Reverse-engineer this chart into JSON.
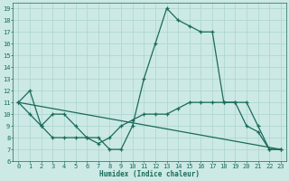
{
  "xlabel": "Humidex (Indice chaleur)",
  "bg_color": "#cce9e5",
  "line_color": "#1a6b5a",
  "grid_color": "#aad4ce",
  "xlim": [
    -0.5,
    23.5
  ],
  "ylim": [
    6,
    19.5
  ],
  "xticks": [
    0,
    1,
    2,
    3,
    4,
    5,
    6,
    7,
    8,
    9,
    10,
    11,
    12,
    13,
    14,
    15,
    16,
    17,
    18,
    19,
    20,
    21,
    22,
    23
  ],
  "yticks": [
    6,
    7,
    8,
    9,
    10,
    11,
    12,
    13,
    14,
    15,
    16,
    17,
    18,
    19
  ],
  "series1_x": [
    0,
    1,
    2,
    3,
    4,
    5,
    6,
    7,
    8,
    9,
    10,
    11,
    12,
    13,
    14,
    15,
    16,
    17,
    18,
    19,
    20,
    21,
    22,
    23
  ],
  "series1_y": [
    11,
    12,
    9,
    10,
    10,
    9,
    8,
    8,
    7,
    7,
    9,
    13,
    16,
    19,
    18,
    17.5,
    17,
    17,
    11,
    11,
    9,
    8.5,
    7,
    7
  ],
  "series2_x": [
    0,
    1,
    2,
    3,
    4,
    5,
    6,
    7,
    8,
    9,
    10,
    11,
    12,
    13,
    14,
    15,
    16,
    17,
    18,
    19,
    20,
    21,
    22,
    23
  ],
  "series2_y": [
    11,
    10,
    9,
    8,
    8,
    8,
    8,
    7.5,
    8,
    9,
    9.5,
    10,
    10,
    10,
    10.5,
    11,
    11,
    11,
    11,
    11,
    11,
    9,
    7,
    7
  ],
  "series3_x": [
    0,
    23
  ],
  "series3_y": [
    11,
    7
  ]
}
